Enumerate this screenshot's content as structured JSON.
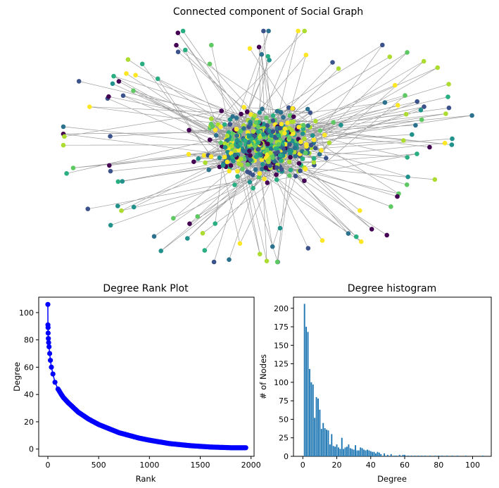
{
  "chart_data": [
    {
      "type": "network",
      "title": "Connected component of Social Graph",
      "colormap": "viridis",
      "edge_color": "#808080",
      "palette": [
        "#440154",
        "#3b528b",
        "#2c728e",
        "#21918c",
        "#28ae80",
        "#5ec962",
        "#addc30",
        "#fde725"
      ]
    },
    {
      "type": "line",
      "title": "Degree Rank Plot",
      "xlabel": "Rank",
      "ylabel": "Degree",
      "xlim": [
        -90,
        2030
      ],
      "ylim": [
        -5.3,
        111.3
      ],
      "xticks": [
        0,
        500,
        1000,
        1500,
        2000
      ],
      "yticks": [
        0,
        20,
        40,
        60,
        80,
        100
      ],
      "color": "#0000ff",
      "marker": "o",
      "series": [
        {
          "x": [
            0,
            1,
            2,
            3,
            5,
            8,
            12,
            18,
            25,
            35,
            50,
            70,
            100,
            150,
            200,
            300,
            400,
            500,
            600,
            700,
            800,
            900,
            1000,
            1200,
            1400,
            1600,
            1800,
            1950
          ],
          "values": [
            106,
            91,
            89,
            85,
            81,
            78,
            75,
            70,
            65,
            60,
            55,
            49,
            44,
            38,
            34,
            27,
            22,
            18,
            15,
            12,
            10,
            8,
            6.5,
            4,
            2.5,
            1.5,
            1,
            1
          ]
        }
      ]
    },
    {
      "type": "bar",
      "title": "Degree histogram",
      "xlabel": "Degree",
      "ylabel": "# of Nodes",
      "xlim": [
        -5.5,
        111
      ],
      "ylim": [
        0,
        215
      ],
      "xticks": [
        0,
        20,
        40,
        60,
        80,
        100
      ],
      "yticks": [
        0,
        25,
        50,
        75,
        100,
        125,
        150,
        175,
        200
      ],
      "color": "#1f77b4",
      "x": [
        1,
        2,
        3,
        4,
        5,
        6,
        7,
        8,
        9,
        10,
        11,
        12,
        13,
        14,
        15,
        16,
        17,
        18,
        19,
        20,
        21,
        22,
        23,
        24,
        25,
        26,
        27,
        28,
        29,
        30,
        31,
        32,
        33,
        34,
        35,
        36,
        37,
        38,
        39,
        40,
        41,
        42,
        43,
        44,
        45,
        46,
        48,
        50,
        52,
        54,
        55,
        57,
        59,
        60,
        62,
        64,
        66,
        68,
        70,
        72,
        75,
        78,
        80,
        82,
        85,
        88,
        91,
        96,
        106
      ],
      "values": [
        206,
        175,
        168,
        118,
        100,
        97,
        52,
        80,
        78,
        63,
        37,
        45,
        38,
        36,
        35,
        16,
        30,
        14,
        13,
        16,
        12,
        10,
        25,
        10,
        12,
        13,
        16,
        11,
        10,
        9,
        15,
        8,
        8,
        12,
        11,
        9,
        8,
        9,
        8,
        7,
        6,
        6,
        4,
        6,
        5,
        3,
        4,
        2,
        3,
        1,
        1,
        2,
        2,
        2,
        1,
        1,
        1,
        1,
        1,
        1,
        1,
        1,
        1,
        1,
        1,
        1,
        1,
        1,
        1
      ]
    }
  ]
}
